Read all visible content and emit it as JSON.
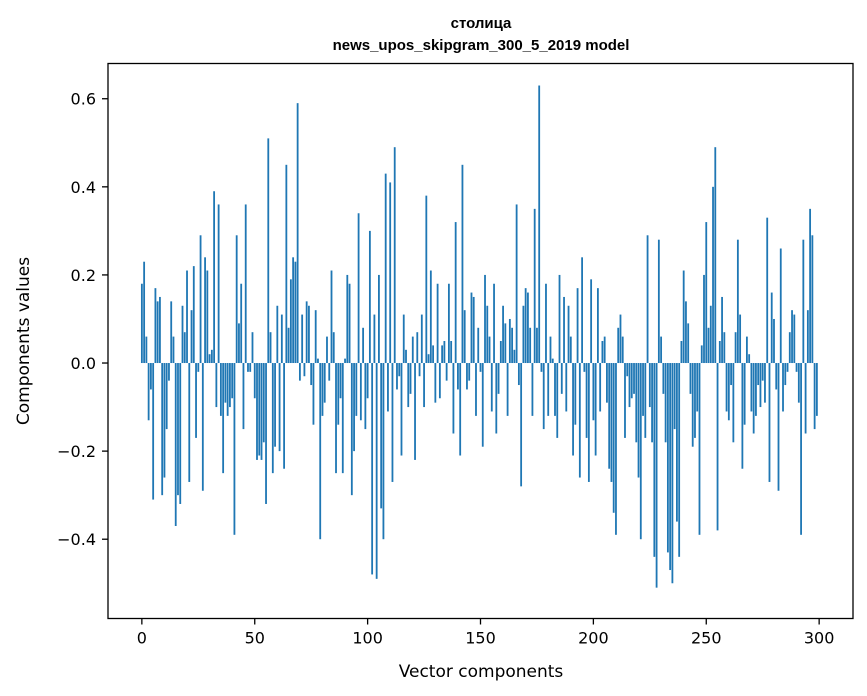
{
  "chart_data": {
    "type": "bar",
    "title": "столица",
    "subtitle": "news_upos_skipgram_300_5_2019 model",
    "xlabel": "Vector components",
    "ylabel": "Components values",
    "xlim": [
      -15,
      315
    ],
    "ylim": [
      -0.58,
      0.68
    ],
    "xticks": [
      0,
      50,
      100,
      150,
      200,
      250,
      300
    ],
    "yticks": [
      -0.4,
      -0.2,
      0.0,
      0.2,
      0.4,
      0.6
    ],
    "ytick_labels": [
      "−0.4",
      "−0.2",
      "0.0",
      "0.2",
      "0.4",
      "0.6"
    ],
    "bar_color": "#1f77b4",
    "grid": false,
    "values": [
      0.18,
      0.23,
      0.06,
      -0.13,
      -0.06,
      -0.31,
      0.17,
      0.14,
      0.15,
      -0.3,
      -0.26,
      -0.15,
      -0.04,
      0.14,
      0.06,
      -0.37,
      -0.3,
      -0.32,
      0.13,
      0.07,
      0.21,
      -0.27,
      0.12,
      0.22,
      -0.17,
      -0.02,
      0.29,
      -0.29,
      0.24,
      0.21,
      0.02,
      0.03,
      0.39,
      -0.1,
      0.36,
      -0.12,
      -0.25,
      -0.09,
      -0.12,
      -0.1,
      -0.08,
      -0.39,
      0.29,
      0.09,
      0.18,
      -0.15,
      0.36,
      -0.02,
      -0.02,
      0.07,
      -0.08,
      -0.22,
      -0.21,
      -0.22,
      -0.18,
      -0.32,
      0.51,
      0.07,
      -0.25,
      -0.19,
      0.13,
      -0.2,
      0.11,
      -0.24,
      0.45,
      0.08,
      0.19,
      0.24,
      0.23,
      0.59,
      -0.04,
      0.11,
      -0.03,
      0.14,
      0.13,
      -0.05,
      -0.14,
      0.12,
      0.01,
      -0.4,
      -0.12,
      -0.09,
      0.06,
      -0.04,
      0.21,
      0.07,
      -0.25,
      -0.14,
      -0.08,
      -0.25,
      0.01,
      0.2,
      0.18,
      -0.3,
      -0.2,
      -0.12,
      0.34,
      -0.13,
      0.08,
      -0.15,
      -0.08,
      0.3,
      -0.48,
      0.11,
      -0.49,
      0.2,
      -0.33,
      -0.4,
      0.43,
      -0.11,
      0.41,
      -0.27,
      0.49,
      -0.06,
      -0.03,
      -0.21,
      0.11,
      0.03,
      -0.1,
      -0.07,
      0.06,
      -0.22,
      0.07,
      -0.03,
      0.11,
      -0.1,
      0.38,
      0.02,
      0.21,
      0.04,
      -0.09,
      0.18,
      -0.08,
      0.04,
      0.05,
      -0.04,
      0.18,
      0.05,
      -0.16,
      0.32,
      -0.06,
      -0.21,
      0.45,
      0.12,
      -0.06,
      -0.04,
      0.16,
      0.15,
      -0.12,
      0.08,
      -0.02,
      -0.19,
      0.2,
      0.13,
      0.06,
      -0.11,
      0.18,
      -0.16,
      -0.07,
      0.05,
      0.13,
      0.09,
      -0.12,
      0.1,
      0.08,
      0.03,
      0.36,
      -0.05,
      -0.28,
      0.13,
      0.17,
      0.16,
      0.08,
      -0.12,
      0.35,
      0.08,
      0.63,
      -0.02,
      -0.15,
      0.18,
      -0.12,
      0.06,
      0.01,
      -0.12,
      -0.17,
      0.2,
      -0.07,
      0.15,
      -0.11,
      0.13,
      0.06,
      -0.21,
      -0.14,
      0.17,
      -0.26,
      0.24,
      -0.02,
      -0.17,
      -0.27,
      0.19,
      -0.13,
      -0.21,
      0.17,
      -0.11,
      0.05,
      0.06,
      -0.09,
      -0.24,
      -0.27,
      -0.34,
      -0.39,
      0.08,
      0.11,
      0.06,
      -0.17,
      -0.03,
      -0.1,
      -0.08,
      -0.07,
      -0.18,
      -0.26,
      -0.4,
      -0.12,
      -0.17,
      0.29,
      -0.1,
      -0.18,
      -0.44,
      -0.51,
      0.28,
      0.06,
      -0.07,
      -0.18,
      -0.43,
      -0.47,
      -0.5,
      -0.15,
      -0.36,
      -0.44,
      0.05,
      0.21,
      0.14,
      0.09,
      -0.07,
      -0.19,
      -0.17,
      -0.11,
      -0.39,
      0.04,
      0.2,
      0.32,
      0.08,
      0.13,
      0.4,
      0.49,
      -0.38,
      0.05,
      0.15,
      0.07,
      -0.11,
      -0.13,
      -0.05,
      -0.18,
      0.07,
      0.28,
      0.11,
      -0.24,
      -0.14,
      0.06,
      0.02,
      -0.11,
      -0.16,
      -0.12,
      -0.05,
      -0.1,
      -0.04,
      -0.09,
      0.33,
      -0.27,
      0.16,
      0.1,
      -0.06,
      -0.29,
      0.26,
      -0.11,
      -0.05,
      -0.02,
      0.07,
      0.12,
      0.11,
      -0.02,
      -0.09,
      -0.39,
      0.28,
      -0.16,
      0.12,
      0.35,
      0.29,
      -0.15,
      -0.12
    ]
  }
}
